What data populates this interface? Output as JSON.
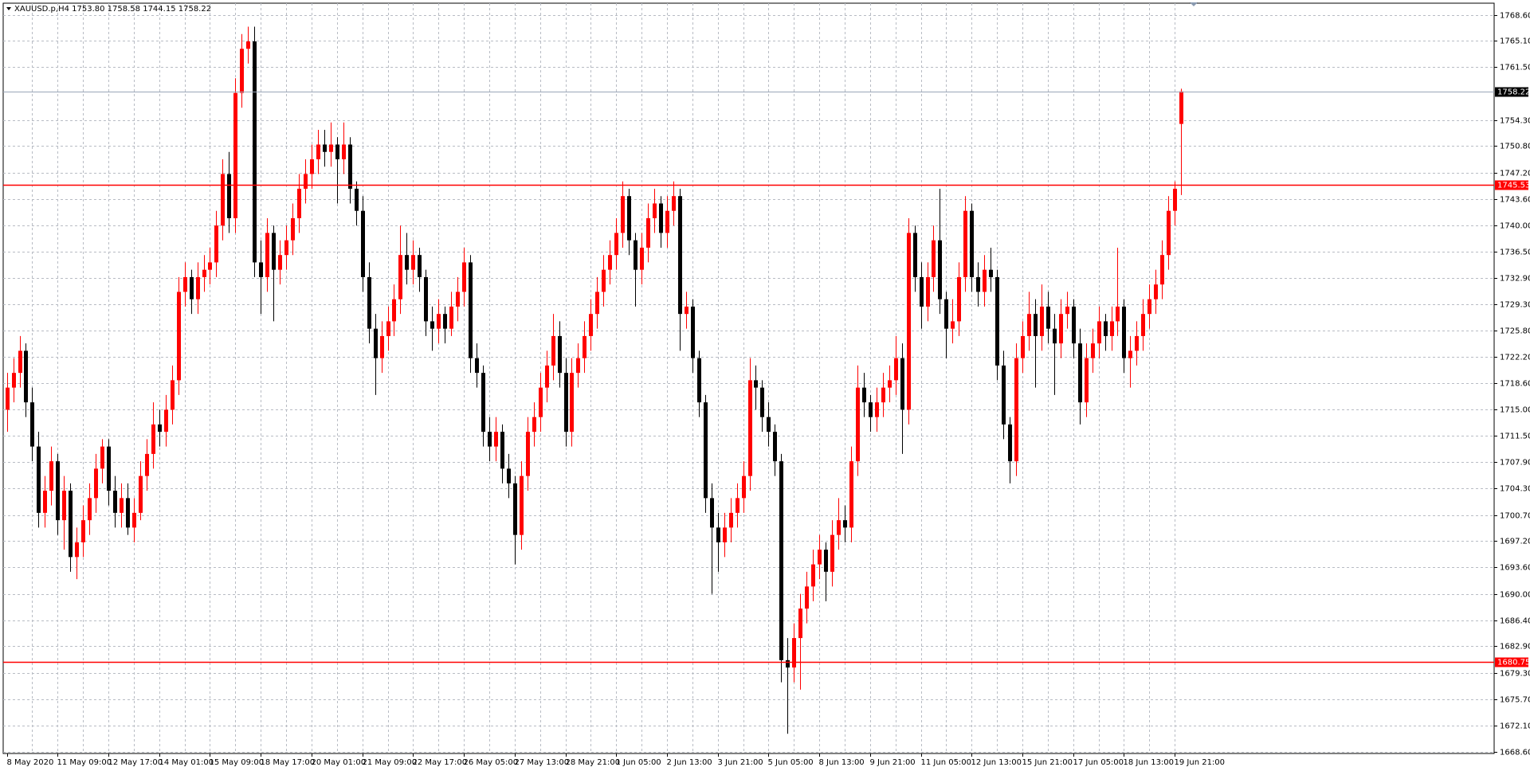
{
  "chart_data": {
    "type": "candlestick",
    "header": "XAUUSD.p,H4  1753.80 1758.58 1744.15 1758.22",
    "up_color": "#ff0000",
    "down_color": "#000000",
    "grid": true,
    "ylim": [
      1668.33,
      1770.19
    ],
    "yticks": [
      {
        "value": 1668.6,
        "label": "1668.60"
      },
      {
        "value": 1672.1,
        "label": "1672.10"
      },
      {
        "value": 1675.7,
        "label": "1675.70"
      },
      {
        "value": 1679.3,
        "label": "1679.30"
      },
      {
        "value": 1682.9,
        "label": "1682.90"
      },
      {
        "value": 1686.4,
        "label": "1686.40"
      },
      {
        "value": 1690,
        "label": "1690.00"
      },
      {
        "value": 1693.6,
        "label": "1693.60"
      },
      {
        "value": 1697.2,
        "label": "1697.20"
      },
      {
        "value": 1700.7,
        "label": "1700.70"
      },
      {
        "value": 1704.3,
        "label": "1704.30"
      },
      {
        "value": 1707.9,
        "label": "1707.90"
      },
      {
        "value": 1711.5,
        "label": "1711.50"
      },
      {
        "value": 1715,
        "label": "1715.00"
      },
      {
        "value": 1718.6,
        "label": "1718.60"
      },
      {
        "value": 1722.2,
        "label": "1722.20"
      },
      {
        "value": 1725.8,
        "label": "1725.80"
      },
      {
        "value": 1729.3,
        "label": "1729.30"
      },
      {
        "value": 1732.9,
        "label": "1732.90"
      },
      {
        "value": 1736.5,
        "label": "1736.50"
      },
      {
        "value": 1740,
        "label": "1740.00"
      },
      {
        "value": 1743.6,
        "label": "1743.60"
      },
      {
        "value": 1747.2,
        "label": "1747.20"
      },
      {
        "value": 1750.8,
        "label": "1750.80"
      },
      {
        "value": 1754.3,
        "label": "1754.30"
      },
      {
        "value": 1761.5,
        "label": "1761.50"
      },
      {
        "value": 1765.1,
        "label": "1765.10"
      },
      {
        "value": 1768.6,
        "label": "1768.60"
      }
    ],
    "hlines": [
      {
        "value": 1745.53,
        "label": "1745.53",
        "color": "#ff0000"
      },
      {
        "value": 1680.75,
        "label": "1680.75",
        "color": "#ff0000"
      }
    ],
    "price_line": {
      "value": 1758.22,
      "label": "1758.22",
      "color": "#9aa6b8"
    },
    "categories": [
      "8 May 2020",
      null,
      null,
      null,
      null,
      null,
      null,
      null,
      "11 May 09:00",
      null,
      null,
      null,
      null,
      null,
      null,
      null,
      "12 May 17:00",
      null,
      null,
      null,
      null,
      null,
      null,
      null,
      "14 May 01:00",
      null,
      null,
      null,
      null,
      null,
      null,
      null,
      "15 May 09:00",
      null,
      null,
      null,
      null,
      null,
      null,
      null,
      "18 May 17:00",
      null,
      null,
      null,
      null,
      null,
      null,
      null,
      "20 May 01:00",
      null,
      null,
      null,
      null,
      null,
      null,
      null,
      "21 May 09:00",
      null,
      null,
      null,
      null,
      null,
      null,
      null,
      "22 May 17:00",
      null,
      null,
      null,
      null,
      null,
      null,
      null,
      "26 May 05:00",
      null,
      null,
      null,
      null,
      null,
      null,
      null,
      "27 May 13:00",
      null,
      null,
      null,
      null,
      null,
      null,
      null,
      "28 May 21:00",
      null,
      null,
      null,
      null,
      null,
      null,
      null,
      "1 Jun 05:00",
      null,
      null,
      null,
      null,
      null,
      null,
      null,
      "2 Jun 13:00",
      null,
      null,
      null,
      null,
      null,
      null,
      null,
      "3 Jun 21:00",
      null,
      null,
      null,
      null,
      null,
      null,
      null,
      "5 Jun 05:00",
      null,
      null,
      null,
      null,
      null,
      null,
      null,
      "8 Jun 13:00",
      null,
      null,
      null,
      null,
      null,
      null,
      null,
      "9 Jun 21:00",
      null,
      null,
      null,
      null,
      null,
      null,
      null,
      "11 Jun 05:00",
      null,
      null,
      null,
      null,
      null,
      null,
      null,
      "12 Jun 13:00",
      null,
      null,
      null,
      null,
      null,
      null,
      null,
      "15 Jun 21:00",
      null,
      null,
      null,
      null,
      null,
      null,
      null,
      "17 Jun 05:00",
      null,
      null,
      null,
      null,
      null,
      null,
      null,
      "18 Jun 13:00",
      null,
      null,
      null,
      null,
      null,
      null,
      null,
      "19 Jun 21:00",
      null
    ],
    "ohlc": [
      [
        1715,
        1720,
        1712,
        1718
      ],
      [
        1718,
        1722,
        1716,
        1720
      ],
      [
        1720,
        1725,
        1718,
        1723
      ],
      [
        1723,
        1724,
        1714,
        1716
      ],
      [
        1716,
        1718,
        1708,
        1710
      ],
      [
        1710,
        1712,
        1699,
        1701
      ],
      [
        1701,
        1706,
        1699,
        1704
      ],
      [
        1704,
        1710,
        1702,
        1708
      ],
      [
        1708,
        1709,
        1698,
        1700
      ],
      [
        1700,
        1706,
        1696,
        1704
      ],
      [
        1704,
        1705,
        1693,
        1695
      ],
      [
        1695,
        1699,
        1692,
        1697
      ],
      [
        1697,
        1702,
        1695,
        1700
      ],
      [
        1700,
        1705,
        1698,
        1703
      ],
      [
        1703,
        1709,
        1701,
        1707
      ],
      [
        1707,
        1711,
        1705,
        1710
      ],
      [
        1710,
        1711,
        1702,
        1704
      ],
      [
        1704,
        1706,
        1699,
        1701
      ],
      [
        1701,
        1705,
        1699,
        1703
      ],
      [
        1703,
        1705,
        1698,
        1699
      ],
      [
        1699,
        1703,
        1697,
        1701
      ],
      [
        1701,
        1708,
        1700,
        1706
      ],
      [
        1706,
        1711,
        1704,
        1709
      ],
      [
        1709,
        1716,
        1707,
        1713
      ],
      [
        1713,
        1715,
        1710,
        1712
      ],
      [
        1712,
        1717,
        1710,
        1715
      ],
      [
        1715,
        1721,
        1713,
        1719
      ],
      [
        1719,
        1733,
        1717,
        1731
      ],
      [
        1731,
        1735,
        1729,
        1733
      ],
      [
        1733,
        1734,
        1728,
        1730
      ],
      [
        1730,
        1735,
        1728,
        1733
      ],
      [
        1733,
        1736,
        1731,
        1734
      ],
      [
        1734,
        1737,
        1732,
        1735
      ],
      [
        1735,
        1742,
        1733,
        1740
      ],
      [
        1740,
        1749,
        1738,
        1747
      ],
      [
        1747,
        1750,
        1739,
        1741
      ],
      [
        1741,
        1760,
        1739,
        1758
      ],
      [
        1758,
        1766,
        1756,
        1764
      ],
      [
        1764,
        1767,
        1762,
        1765
      ],
      [
        1765,
        1767,
        1733,
        1735
      ],
      [
        1735,
        1738,
        1728,
        1733
      ],
      [
        1733,
        1741,
        1731,
        1739
      ],
      [
        1739,
        1740,
        1727,
        1734
      ],
      [
        1734,
        1738,
        1732,
        1736
      ],
      [
        1736,
        1740,
        1734,
        1738
      ],
      [
        1738,
        1743,
        1736,
        1741
      ],
      [
        1741,
        1747,
        1739,
        1745
      ],
      [
        1745,
        1749,
        1743,
        1747
      ],
      [
        1747,
        1751,
        1745,
        1749
      ],
      [
        1749,
        1753,
        1747,
        1751
      ],
      [
        1751,
        1753,
        1748,
        1750
      ],
      [
        1750,
        1754,
        1748,
        1751
      ],
      [
        1751,
        1752,
        1743,
        1749
      ],
      [
        1749,
        1754,
        1747,
        1751
      ],
      [
        1751,
        1752,
        1743,
        1745
      ],
      [
        1745,
        1746,
        1740,
        1742
      ],
      [
        1742,
        1744,
        1731,
        1733
      ],
      [
        1733,
        1735,
        1724,
        1726
      ],
      [
        1726,
        1728,
        1717,
        1722
      ],
      [
        1722,
        1727,
        1720,
        1725
      ],
      [
        1725,
        1729,
        1723,
        1727
      ],
      [
        1727,
        1732,
        1725,
        1730
      ],
      [
        1730,
        1740,
        1728,
        1736
      ],
      [
        1736,
        1739,
        1732,
        1734
      ],
      [
        1734,
        1738,
        1732,
        1736
      ],
      [
        1736,
        1737,
        1731,
        1733
      ],
      [
        1733,
        1734,
        1725,
        1727
      ],
      [
        1727,
        1729,
        1723,
        1726
      ],
      [
        1726,
        1730,
        1724,
        1728
      ],
      [
        1728,
        1729,
        1724,
        1726
      ],
      [
        1726,
        1731,
        1725,
        1729
      ],
      [
        1729,
        1733,
        1727,
        1731
      ],
      [
        1731,
        1737,
        1729,
        1735
      ],
      [
        1735,
        1736,
        1720,
        1722
      ],
      [
        1722,
        1724,
        1718,
        1720
      ],
      [
        1720,
        1721,
        1710,
        1712
      ],
      [
        1712,
        1714,
        1708,
        1710
      ],
      [
        1710,
        1714,
        1708,
        1712
      ],
      [
        1712,
        1713,
        1705,
        1707
      ],
      [
        1707,
        1709,
        1703,
        1705
      ],
      [
        1705,
        1706,
        1694,
        1698
      ],
      [
        1698,
        1708,
        1696,
        1706
      ],
      [
        1706,
        1714,
        1704,
        1712
      ],
      [
        1712,
        1716,
        1710,
        1714
      ],
      [
        1714,
        1720,
        1712,
        1718
      ],
      [
        1718,
        1723,
        1716,
        1721
      ],
      [
        1721,
        1728,
        1719,
        1725
      ],
      [
        1725,
        1727,
        1718,
        1720
      ],
      [
        1720,
        1722,
        1710,
        1712
      ],
      [
        1712,
        1722,
        1710,
        1720
      ],
      [
        1720,
        1724,
        1718,
        1722
      ],
      [
        1722,
        1727,
        1720,
        1725
      ],
      [
        1725,
        1730,
        1723,
        1728
      ],
      [
        1728,
        1733,
        1726,
        1731
      ],
      [
        1731,
        1736,
        1729,
        1734
      ],
      [
        1734,
        1738,
        1732,
        1736
      ],
      [
        1736,
        1741,
        1734,
        1739
      ],
      [
        1739,
        1746,
        1737,
        1744
      ],
      [
        1744,
        1745,
        1736,
        1738
      ],
      [
        1738,
        1739,
        1729,
        1734
      ],
      [
        1734,
        1739,
        1732,
        1737
      ],
      [
        1737,
        1743,
        1735,
        1741
      ],
      [
        1741,
        1745,
        1739,
        1743
      ],
      [
        1743,
        1744,
        1737,
        1739
      ],
      [
        1739,
        1744,
        1737,
        1742
      ],
      [
        1742,
        1746,
        1740,
        1744
      ],
      [
        1744,
        1745,
        1723,
        1728
      ],
      [
        1728,
        1731,
        1726,
        1729
      ],
      [
        1729,
        1730,
        1720,
        1722
      ],
      [
        1722,
        1723,
        1714,
        1716
      ],
      [
        1716,
        1717,
        1701,
        1703
      ],
      [
        1703,
        1705,
        1690,
        1699
      ],
      [
        1699,
        1701,
        1693,
        1697
      ],
      [
        1697,
        1701,
        1695,
        1699
      ],
      [
        1699,
        1703,
        1697,
        1701
      ],
      [
        1701,
        1705,
        1699,
        1703
      ],
      [
        1703,
        1708,
        1701,
        1706
      ],
      [
        1706,
        1722,
        1704,
        1719
      ],
      [
        1719,
        1721,
        1715,
        1718
      ],
      [
        1718,
        1719,
        1712,
        1714
      ],
      [
        1714,
        1716,
        1710,
        1712
      ],
      [
        1712,
        1713,
        1706,
        1708
      ],
      [
        1708,
        1709,
        1678,
        1681
      ],
      [
        1681,
        1684,
        1671,
        1680
      ],
      [
        1680,
        1686,
        1678,
        1684
      ],
      [
        1684,
        1690,
        1677,
        1688
      ],
      [
        1688,
        1693,
        1686,
        1691
      ],
      [
        1691,
        1696,
        1689,
        1694
      ],
      [
        1694,
        1698,
        1692,
        1696
      ],
      [
        1696,
        1697,
        1689,
        1693
      ],
      [
        1693,
        1700,
        1691,
        1698
      ],
      [
        1698,
        1703,
        1696,
        1700
      ],
      [
        1700,
        1702,
        1697,
        1699
      ],
      [
        1699,
        1710,
        1697,
        1708
      ],
      [
        1708,
        1721,
        1706,
        1718
      ],
      [
        1718,
        1720,
        1714,
        1716
      ],
      [
        1716,
        1717,
        1712,
        1714
      ],
      [
        1714,
        1718,
        1712,
        1716
      ],
      [
        1716,
        1720,
        1714,
        1718
      ],
      [
        1718,
        1721,
        1716,
        1719
      ],
      [
        1719,
        1725,
        1717,
        1722
      ],
      [
        1722,
        1724,
        1709,
        1715
      ],
      [
        1715,
        1741,
        1713,
        1739
      ],
      [
        1739,
        1740,
        1731,
        1733
      ],
      [
        1733,
        1735,
        1726,
        1729
      ],
      [
        1729,
        1735,
        1727,
        1733
      ],
      [
        1733,
        1740,
        1731,
        1738
      ],
      [
        1738,
        1745,
        1728,
        1730
      ],
      [
        1730,
        1731,
        1722,
        1726
      ],
      [
        1726,
        1730,
        1724,
        1727
      ],
      [
        1727,
        1735,
        1725,
        1733
      ],
      [
        1733,
        1744,
        1731,
        1742
      ],
      [
        1742,
        1743,
        1731,
        1733
      ],
      [
        1733,
        1735,
        1729,
        1731
      ],
      [
        1731,
        1736,
        1729,
        1734
      ],
      [
        1734,
        1737,
        1731,
        1733
      ],
      [
        1733,
        1734,
        1719,
        1721
      ],
      [
        1721,
        1723,
        1711,
        1713
      ],
      [
        1713,
        1714,
        1705,
        1708
      ],
      [
        1708,
        1724,
        1706,
        1722
      ],
      [
        1722,
        1727,
        1720,
        1725
      ],
      [
        1725,
        1731,
        1723,
        1728
      ],
      [
        1728,
        1730,
        1718,
        1725
      ],
      [
        1725,
        1732,
        1723,
        1729
      ],
      [
        1729,
        1731,
        1724,
        1726
      ],
      [
        1726,
        1728,
        1717,
        1724
      ],
      [
        1724,
        1730,
        1722,
        1728
      ],
      [
        1728,
        1731,
        1726,
        1729
      ],
      [
        1729,
        1730,
        1722,
        1724
      ],
      [
        1724,
        1726,
        1713,
        1716
      ],
      [
        1716,
        1724,
        1714,
        1722
      ],
      [
        1722,
        1726,
        1720,
        1724
      ],
      [
        1724,
        1729,
        1722,
        1727
      ],
      [
        1727,
        1728,
        1723,
        1725
      ],
      [
        1725,
        1729,
        1723,
        1727
      ],
      [
        1727,
        1737,
        1725,
        1729
      ],
      [
        1729,
        1730,
        1720,
        1722
      ],
      [
        1722,
        1725,
        1718,
        1723
      ],
      [
        1723,
        1727,
        1721,
        1725
      ],
      [
        1725,
        1730,
        1723,
        1728
      ],
      [
        1728,
        1732,
        1726,
        1730
      ],
      [
        1730,
        1734,
        1728,
        1732
      ],
      [
        1732,
        1738,
        1730,
        1736
      ],
      [
        1736,
        1744,
        1734,
        1742
      ],
      [
        1742,
        1746,
        1740,
        1745
      ],
      [
        1753.8,
        1758.58,
        1744.15,
        1758.22
      ]
    ]
  }
}
